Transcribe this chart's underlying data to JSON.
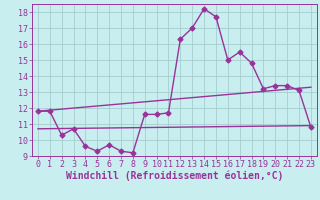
{
  "title": "",
  "xlabel": "Windchill (Refroidissement éolien,°C)",
  "ylabel": "",
  "background_color": "#c8eef0",
  "line_color": "#993399",
  "spine_color": "#993399",
  "xlim_min": -0.5,
  "xlim_max": 23.5,
  "ylim_min": 9.0,
  "ylim_max": 18.5,
  "yticks": [
    9,
    10,
    11,
    12,
    13,
    14,
    15,
    16,
    17,
    18
  ],
  "xticks": [
    0,
    1,
    2,
    3,
    4,
    5,
    6,
    7,
    8,
    9,
    10,
    11,
    12,
    13,
    14,
    15,
    16,
    17,
    18,
    19,
    20,
    21,
    22,
    23
  ],
  "windchill_x": [
    0,
    1,
    2,
    3,
    4,
    5,
    6,
    7,
    8,
    9,
    10,
    11,
    12,
    13,
    14,
    15,
    16,
    17,
    18,
    19,
    20,
    21,
    22,
    23
  ],
  "windchill_y": [
    11.8,
    11.8,
    10.3,
    10.7,
    9.6,
    9.3,
    9.7,
    9.3,
    9.2,
    11.6,
    11.6,
    11.7,
    16.3,
    17.0,
    18.2,
    17.7,
    15.0,
    15.5,
    14.8,
    13.2,
    13.4,
    13.4,
    13.1,
    10.8
  ],
  "ref_line1_x": [
    0,
    23
  ],
  "ref_line1_y": [
    11.8,
    13.3
  ],
  "ref_line2_x": [
    0,
    23
  ],
  "ref_line2_y": [
    10.7,
    10.9
  ],
  "marker": "D",
  "markersize": 2.5,
  "linewidth": 1.0,
  "tick_fontsize": 6.0,
  "label_fontsize": 7.0,
  "grid_color": "#a0c8c8",
  "separator_color": "#993399"
}
